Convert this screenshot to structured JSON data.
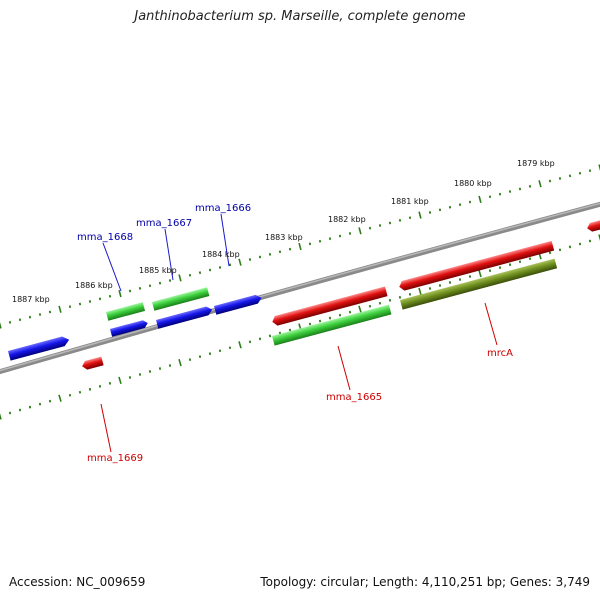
{
  "title": "Janthinobacterium sp. Marseille, complete genome",
  "footer": {
    "accession": "Accession: NC_009659",
    "summary": "Topology: circular; Length: 4,110,251 bp; Genes: 3,749"
  },
  "colors": {
    "backbone": "#8a8a8a",
    "ruler_ticks": "#2e7d1a",
    "gene_blue": "#1010e0",
    "gene_green": "#3ccf3c",
    "gene_red": "#e00d0d",
    "gene_olive": "#6f8f1f",
    "label_blue": "#0000aa",
    "label_red": "#cc0000"
  },
  "ruler_labels": [
    "1887 kbp",
    "1886 kbp",
    "1885 kbp",
    "1884 kbp",
    "1883 kbp",
    "1882 kbp",
    "1881 kbp",
    "1880 kbp",
    "1879 kbp"
  ],
  "genes": [
    {
      "name": "mma_1665",
      "color": "gene_green",
      "strand": "-"
    },
    {
      "name": "mma_1666",
      "color": "gene_blue",
      "strand": "+"
    },
    {
      "name": "mma_1667",
      "color": "gene_blue",
      "strand": "+"
    },
    {
      "name": "mma_1668",
      "color": "gene_blue",
      "strand": "+"
    },
    {
      "name": "mma_1669",
      "color": "gene_red",
      "strand": "-"
    },
    {
      "name": "mrcA",
      "color": "gene_olive",
      "strand": "-"
    }
  ]
}
